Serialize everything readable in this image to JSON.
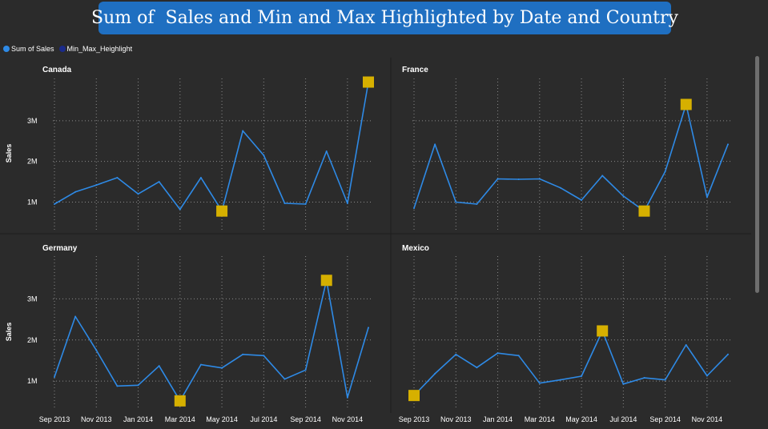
{
  "title": "Sum of  Sales and Min and Max Highlighted by Date and Country",
  "legend": [
    {
      "label": "Sum of  Sales",
      "color": "#2e8ae6"
    },
    {
      "label": "Min_Max_Heighlight",
      "color": "#1a2a8a"
    }
  ],
  "colors": {
    "line": "#2e8ae6",
    "marker": "#d6b000",
    "grid": "#8a8a8a"
  },
  "chart_data": {
    "type": "line",
    "ylabel": "Sales",
    "ylim": [
      0.4,
      4.0
    ],
    "yticks": [
      {
        "value": 1,
        "label": "1M"
      },
      {
        "value": 2,
        "label": "2M"
      },
      {
        "value": 3,
        "label": "3M"
      }
    ],
    "x": [
      "2013-09",
      "2013-10",
      "2013-11",
      "2013-12",
      "2014-01",
      "2014-02",
      "2014-03",
      "2014-04",
      "2014-05",
      "2014-06",
      "2014-07",
      "2014-08",
      "2014-09",
      "2014-10",
      "2014-11",
      "2014-12"
    ],
    "xticks": [
      "Sep 2013",
      "Nov 2013",
      "Jan 2014",
      "Mar 2014",
      "May 2014",
      "Jul 2014",
      "Sep 2014",
      "Nov 2014"
    ],
    "panels": [
      {
        "name": "Canada",
        "values": [
          0.95,
          1.25,
          1.42,
          1.6,
          1.2,
          1.5,
          0.82,
          1.6,
          0.78,
          2.75,
          2.15,
          0.97,
          0.95,
          2.25,
          0.97,
          3.95
        ],
        "highlights": [
          {
            "x": "2014-05",
            "value": 0.78
          },
          {
            "x": "2014-12",
            "value": 3.95
          }
        ]
      },
      {
        "name": "France",
        "values": [
          0.85,
          2.42,
          1.0,
          0.95,
          1.57,
          1.56,
          1.57,
          1.35,
          1.05,
          1.65,
          1.15,
          0.78,
          1.75,
          3.4,
          1.12,
          2.42
        ],
        "highlights": [
          {
            "x": "2014-08",
            "value": 0.78
          },
          {
            "x": "2014-10",
            "value": 3.4
          }
        ]
      },
      {
        "name": "Germany",
        "values": [
          1.1,
          2.57,
          1.75,
          0.88,
          0.9,
          1.37,
          0.52,
          1.4,
          1.32,
          1.65,
          1.62,
          1.05,
          1.27,
          3.45,
          0.6,
          2.3
        ],
        "highlights": [
          {
            "x": "2014-03",
            "value": 0.52
          },
          {
            "x": "2014-10",
            "value": 3.45
          }
        ]
      },
      {
        "name": "Mexico",
        "values": [
          0.65,
          1.18,
          1.65,
          1.33,
          1.68,
          1.62,
          0.95,
          1.03,
          1.12,
          2.22,
          0.93,
          1.08,
          1.03,
          1.88,
          1.13,
          1.65
        ],
        "highlights": [
          {
            "x": "2013-09",
            "value": 0.65
          },
          {
            "x": "2014-06",
            "value": 2.22
          }
        ]
      }
    ]
  }
}
